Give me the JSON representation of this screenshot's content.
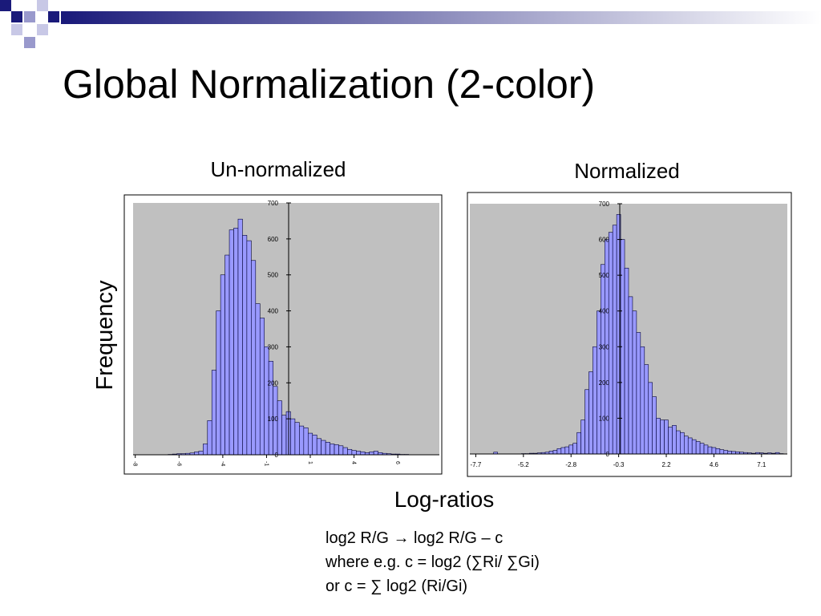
{
  "title": "Global Normalization (2-color)",
  "y_label": "Frequency",
  "x_label": "Log-ratios",
  "notes": [
    "log2 R/G → log2 R/G – c",
    "where e.g. c = log2 (∑Ri/ ∑Gi)",
    "or c = ∑ log2 (Ri/Gi)"
  ],
  "chart_data": [
    {
      "type": "bar",
      "title": "Un-normalized",
      "color": "#9999ff",
      "categories": [
        "-8",
        null,
        null,
        null,
        null,
        null,
        null,
        null,
        null,
        null,
        "-6",
        null,
        null,
        null,
        null,
        null,
        null,
        null,
        null,
        null,
        "-4",
        null,
        null,
        null,
        null,
        null,
        null,
        null,
        null,
        null,
        "-1",
        null,
        null,
        null,
        null,
        null,
        null,
        null,
        null,
        null,
        "1",
        null,
        null,
        null,
        null,
        null,
        null,
        null,
        null,
        null,
        "4",
        null,
        null,
        null,
        null,
        null,
        null,
        null,
        null,
        null,
        "6",
        null,
        null,
        null,
        null,
        null,
        null,
        null,
        null,
        null
      ],
      "values": [
        0,
        0,
        0,
        0,
        0,
        0,
        0,
        0,
        1,
        2,
        3,
        3,
        4,
        5,
        8,
        10,
        30,
        95,
        235,
        400,
        500,
        555,
        625,
        630,
        655,
        610,
        595,
        540,
        420,
        380,
        300,
        260,
        190,
        150,
        110,
        120,
        100,
        90,
        80,
        75,
        60,
        55,
        45,
        40,
        35,
        30,
        28,
        25,
        20,
        15,
        12,
        10,
        8,
        6,
        8,
        10,
        6,
        4,
        3,
        2,
        2,
        1,
        1,
        0,
        0,
        0,
        0,
        0,
        0,
        0
      ],
      "ylim": [
        0,
        700
      ],
      "yticks": [
        0,
        100,
        200,
        300,
        400,
        500,
        600,
        700
      ]
    },
    {
      "type": "bar",
      "title": "Normalized",
      "color": "#9999ff",
      "categories": [
        null,
        "-7.7",
        null,
        null,
        null,
        null,
        null,
        null,
        null,
        null,
        null,
        null,
        null,
        "-5.2",
        null,
        null,
        null,
        null,
        null,
        null,
        null,
        null,
        null,
        null,
        null,
        "-2.8",
        null,
        null,
        null,
        null,
        null,
        null,
        null,
        null,
        null,
        null,
        null,
        "-0.3",
        null,
        null,
        null,
        null,
        null,
        null,
        null,
        null,
        null,
        null,
        null,
        "2.2",
        null,
        null,
        null,
        null,
        null,
        null,
        null,
        null,
        null,
        null,
        null,
        "4.6",
        null,
        null,
        null,
        null,
        null,
        null,
        null,
        null,
        null,
        null,
        null,
        "7.1",
        null,
        null,
        null,
        null,
        null,
        null
      ],
      "values": [
        0,
        0,
        0,
        0,
        0,
        0,
        5,
        0,
        0,
        0,
        0,
        0,
        0,
        1,
        1,
        2,
        2,
        3,
        4,
        5,
        8,
        10,
        15,
        18,
        20,
        25,
        30,
        60,
        95,
        180,
        230,
        300,
        400,
        530,
        600,
        620,
        640,
        670,
        600,
        520,
        440,
        400,
        340,
        300,
        250,
        200,
        160,
        100,
        95,
        95,
        75,
        80,
        65,
        60,
        50,
        45,
        40,
        35,
        30,
        25,
        20,
        18,
        15,
        12,
        10,
        8,
        7,
        6,
        5,
        4,
        3,
        2,
        4,
        3,
        2,
        3,
        2,
        4,
        1,
        0
      ],
      "ylim": [
        0,
        700
      ],
      "yticks": [
        0,
        100,
        200,
        300,
        400,
        500,
        600,
        700
      ]
    }
  ]
}
